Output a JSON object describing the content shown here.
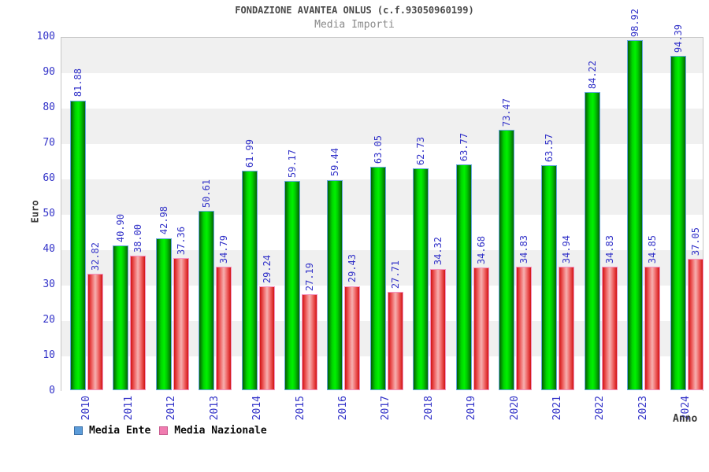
{
  "title": "FONDAZIONE AVANTEA ONLUS (c.f.93050960199)",
  "subtitle": "Media Importi",
  "y_axis_label": "Euro",
  "x_axis_label": "Anno",
  "legend": {
    "items": [
      {
        "label": "Media Ente",
        "swatch_fill": "#5c9cd9",
        "swatch_border": "#3a6ea5"
      },
      {
        "label": "Media Nazionale",
        "swatch_fill": "#f07cb0",
        "swatch_border": "#c75b8e"
      }
    ]
  },
  "colors": {
    "axis_text_blue": "#3232c8",
    "band_gray": "#f0f0f0",
    "media_ente_green": "#00d300",
    "media_ente_border": "#66a7de",
    "media_nazionale_red": "#d21414",
    "media_nazionale_border": "#f294c2"
  },
  "chart_data": {
    "type": "bar",
    "title": "FONDAZIONE AVANTEA ONLUS (c.f.93050960199)",
    "subtitle": "Media Importi",
    "xlabel": "Anno",
    "ylabel": "Euro",
    "ylim": [
      0,
      100
    ],
    "y_ticks": [
      0,
      10,
      20,
      30,
      40,
      50,
      60,
      70,
      80,
      90,
      100
    ],
    "grid": "alternating-horizontal-bands",
    "legend_position": "bottom-left",
    "value_label_style": "rotated-90-blue-two-decimals",
    "categories": [
      "2010",
      "2011",
      "2012",
      "2013",
      "2014",
      "2015",
      "2016",
      "2017",
      "2018",
      "2019",
      "2020",
      "2021",
      "2022",
      "2023",
      "2024"
    ],
    "series": [
      {
        "name": "Media Ente",
        "values": [
          81.88,
          40.9,
          42.98,
          50.61,
          61.99,
          59.17,
          59.44,
          63.05,
          62.73,
          63.77,
          73.47,
          63.57,
          84.22,
          98.92,
          94.39
        ]
      },
      {
        "name": "Media Nazionale",
        "values": [
          32.82,
          38.0,
          37.36,
          34.79,
          29.24,
          27.19,
          29.43,
          27.71,
          34.32,
          34.68,
          34.83,
          34.94,
          34.83,
          34.85,
          37.05
        ]
      }
    ]
  }
}
